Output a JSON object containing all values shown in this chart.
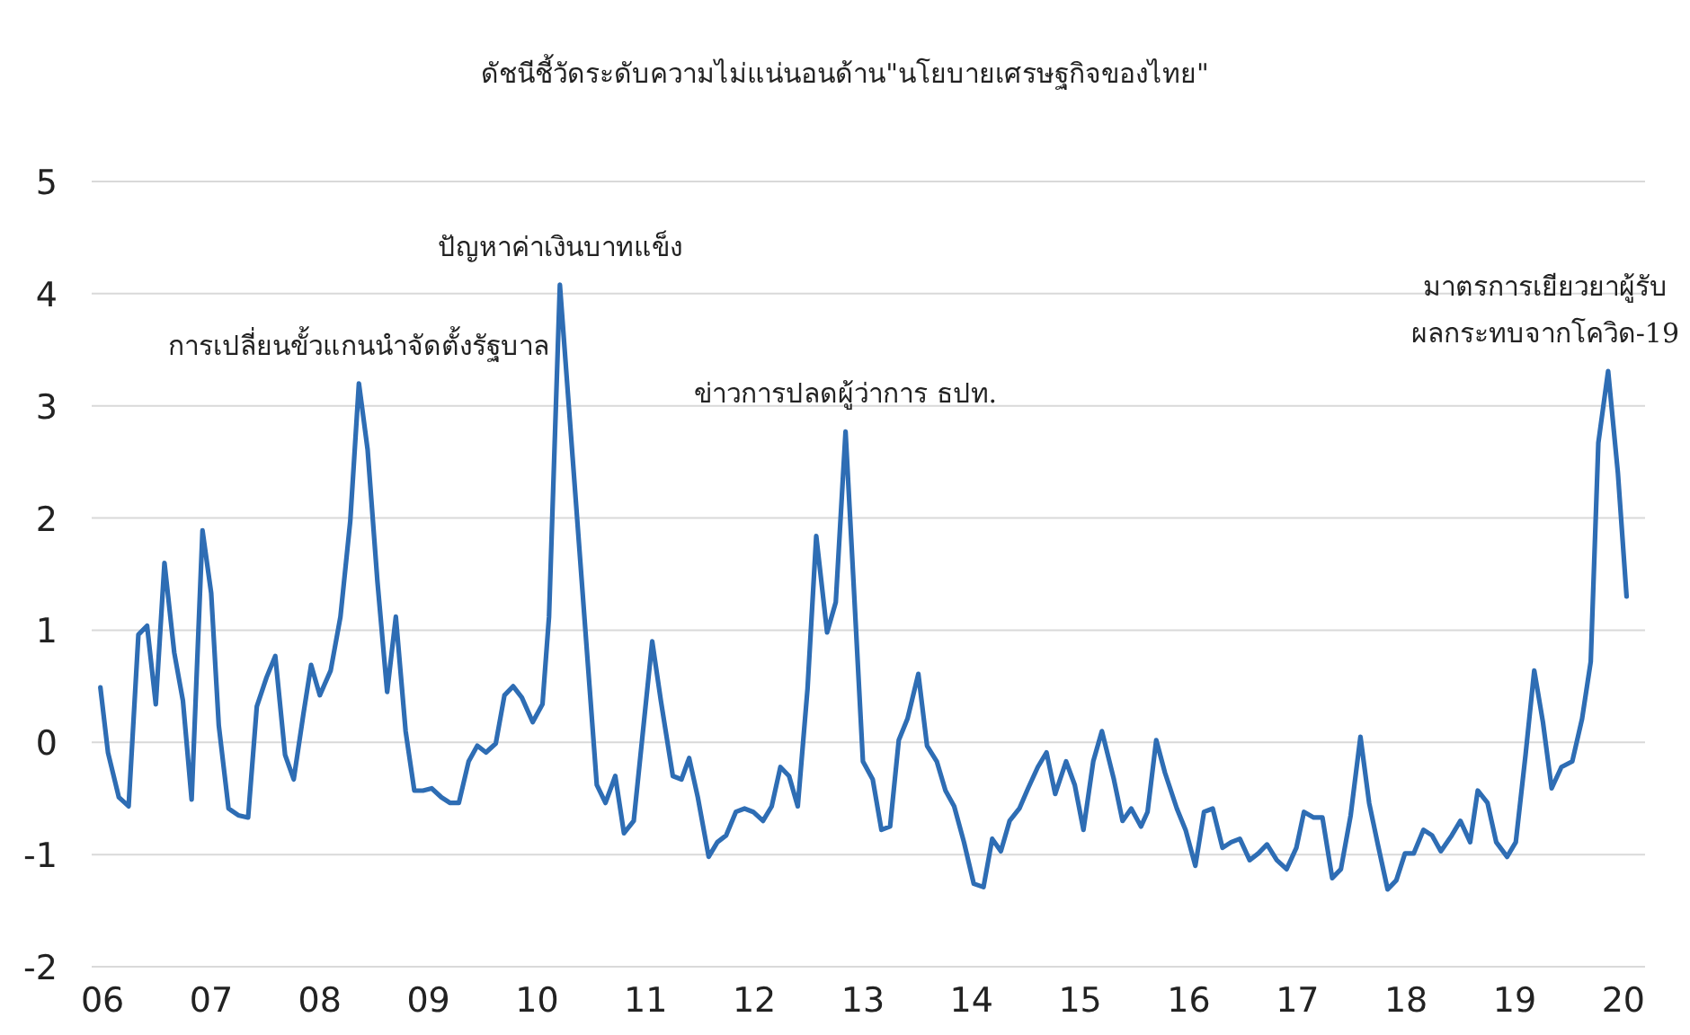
{
  "chart_data": {
    "type": "line",
    "title": "ดัชนีชี้วัดระดับความไม่แน่นอนด้าน\"นโยบายเศรษฐกิจของไทย\"",
    "xlim": [
      2005.9,
      2020.2
    ],
    "ylim": [
      -2,
      5
    ],
    "xticks": [
      {
        "value": 2006,
        "label": "06"
      },
      {
        "value": 2007,
        "label": "07"
      },
      {
        "value": 2008,
        "label": "08"
      },
      {
        "value": 2009,
        "label": "09"
      },
      {
        "value": 2010,
        "label": "10"
      },
      {
        "value": 2011,
        "label": "11"
      },
      {
        "value": 2012,
        "label": "12"
      },
      {
        "value": 2013,
        "label": "13"
      },
      {
        "value": 2014,
        "label": "14"
      },
      {
        "value": 2015,
        "label": "15"
      },
      {
        "value": 2016,
        "label": "16"
      },
      {
        "value": 2017,
        "label": "17"
      },
      {
        "value": 2018,
        "label": "18"
      },
      {
        "value": 2019,
        "label": "19"
      },
      {
        "value": 2020,
        "label": "20"
      }
    ],
    "yticks": [
      -2,
      -1,
      0,
      1,
      2,
      3,
      4,
      5
    ],
    "grid": "y",
    "annotations": [
      {
        "text": "การเปลี่ยนขั้วแกนนำจัดตั้งรัฐบาล",
        "x": 2008.36,
        "y": 3.2
      },
      {
        "text": "ปัญหาค่าเงินบาทแข็ง",
        "x": 2010.21,
        "y": 4.08
      },
      {
        "text": "ข่าวการปลดผู้ว่าการ ธปท.",
        "x": 2012.84,
        "y": 2.77
      },
      {
        "text": "มาตรการเยียวยาผู้รับ ผลกระทบจากโควิด-19",
        "x": 2019.86,
        "y": 3.31
      }
    ],
    "series": [
      {
        "color": "#2e6db4",
        "x": [
          2005.98,
          2006.05,
          2006.15,
          2006.24,
          2006.33,
          2006.41,
          2006.49,
          2006.57,
          2006.66,
          2006.74,
          2006.82,
          2006.92,
          2007.0,
          2007.07,
          2007.16,
          2007.25,
          2007.34,
          2007.42,
          2007.51,
          2007.59,
          2007.68,
          2007.76,
          2007.85,
          2007.92,
          2008.0,
          2008.1,
          2008.19,
          2008.28,
          2008.36,
          2008.44,
          2008.53,
          2008.62,
          2008.7,
          2008.79,
          2008.87,
          2008.95,
          2009.03,
          2009.12,
          2009.2,
          2009.28,
          2009.37,
          2009.45,
          2009.53,
          2009.62,
          2009.7,
          2009.78,
          2009.86,
          2009.96,
          2010.05,
          2010.11,
          2010.21,
          2010.55,
          2010.63,
          2010.72,
          2010.8,
          2010.89,
          2011.06,
          2011.14,
          2011.25,
          2011.33,
          2011.4,
          2011.48,
          2011.58,
          2011.66,
          2011.74,
          2011.83,
          2011.91,
          2011.99,
          2012.08,
          2012.16,
          2012.24,
          2012.32,
          2012.4,
          2012.49,
          2012.57,
          2012.67,
          2012.75,
          2012.84,
          2012.91,
          2013.0,
          2013.09,
          2013.17,
          2013.25,
          2013.33,
          2013.41,
          2013.51,
          2013.59,
          2013.68,
          2013.76,
          2013.84,
          2013.93,
          2014.02,
          2014.11,
          2014.19,
          2014.27,
          2014.35,
          2014.44,
          2014.52,
          2014.61,
          2014.69,
          2014.77,
          2014.87,
          2014.95,
          2015.03,
          2015.12,
          2015.2,
          2015.31,
          2015.39,
          2015.47,
          2015.56,
          2015.62,
          2015.7,
          2015.78,
          2015.89,
          2015.97,
          2016.06,
          2016.14,
          2016.22,
          2016.31,
          2016.39,
          2016.47,
          2016.56,
          2016.64,
          2016.72,
          2016.81,
          2016.9,
          2016.99,
          2017.06,
          2017.15,
          2017.23,
          2017.32,
          2017.4,
          2017.49,
          2017.58,
          2017.66,
          2017.74,
          2017.83,
          2017.91,
          2017.99,
          2018.07,
          2018.16,
          2018.24,
          2018.32,
          2018.42,
          2018.5,
          2018.59,
          2018.66,
          2018.75,
          2018.83,
          2018.93,
          2019.01,
          2019.1,
          2019.18,
          2019.26,
          2019.34,
          2019.43,
          2019.53,
          2019.62,
          2019.7,
          2019.77,
          2019.86,
          2019.95,
          2020.03
        ],
        "values": [
          0.49,
          -0.09,
          -0.49,
          -0.57,
          0.96,
          1.04,
          0.34,
          1.6,
          0.8,
          0.37,
          -0.51,
          1.89,
          1.33,
          0.15,
          -0.59,
          -0.65,
          -0.67,
          0.32,
          0.58,
          0.77,
          -0.11,
          -0.33,
          0.26,
          0.69,
          0.42,
          0.64,
          1.12,
          1.97,
          3.2,
          2.61,
          1.44,
          0.45,
          1.12,
          0.1,
          -0.43,
          -0.43,
          -0.41,
          -0.49,
          -0.54,
          -0.54,
          -0.17,
          -0.03,
          -0.09,
          -0.01,
          0.42,
          0.5,
          0.4,
          0.18,
          0.34,
          1.12,
          4.08,
          -0.38,
          -0.54,
          -0.3,
          -0.81,
          -0.7,
          0.9,
          0.37,
          -0.3,
          -0.33,
          -0.14,
          -0.49,
          -1.02,
          -0.89,
          -0.83,
          -0.62,
          -0.59,
          -0.62,
          -0.7,
          -0.57,
          -0.22,
          -0.3,
          -0.57,
          0.48,
          1.84,
          0.98,
          1.25,
          2.77,
          1.49,
          -0.17,
          -0.33,
          -0.78,
          -0.75,
          0.02,
          0.21,
          0.61,
          -0.03,
          -0.17,
          -0.43,
          -0.57,
          -0.89,
          -1.26,
          -1.29,
          -0.86,
          -0.97,
          -0.7,
          -0.59,
          -0.41,
          -0.22,
          -0.09,
          -0.46,
          -0.17,
          -0.38,
          -0.78,
          -0.17,
          0.1,
          -0.33,
          -0.7,
          -0.59,
          -0.75,
          -0.62,
          0.02,
          -0.27,
          -0.59,
          -0.78,
          -1.1,
          -0.62,
          -0.59,
          -0.94,
          -0.89,
          -0.86,
          -1.05,
          -0.99,
          -0.91,
          -1.05,
          -1.13,
          -0.94,
          -0.62,
          -0.67,
          -0.67,
          -1.21,
          -1.13,
          -0.65,
          0.05,
          -0.54,
          -0.91,
          -1.31,
          -1.23,
          -0.99,
          -0.99,
          -0.78,
          -0.83,
          -0.97,
          -0.83,
          -0.7,
          -0.89,
          -0.43,
          -0.54,
          -0.89,
          -1.02,
          -0.89,
          -0.11,
          0.64,
          0.18,
          -0.41,
          -0.22,
          -0.17,
          0.21,
          0.72,
          2.67,
          3.31,
          2.4,
          1.3
        ]
      }
    ]
  }
}
